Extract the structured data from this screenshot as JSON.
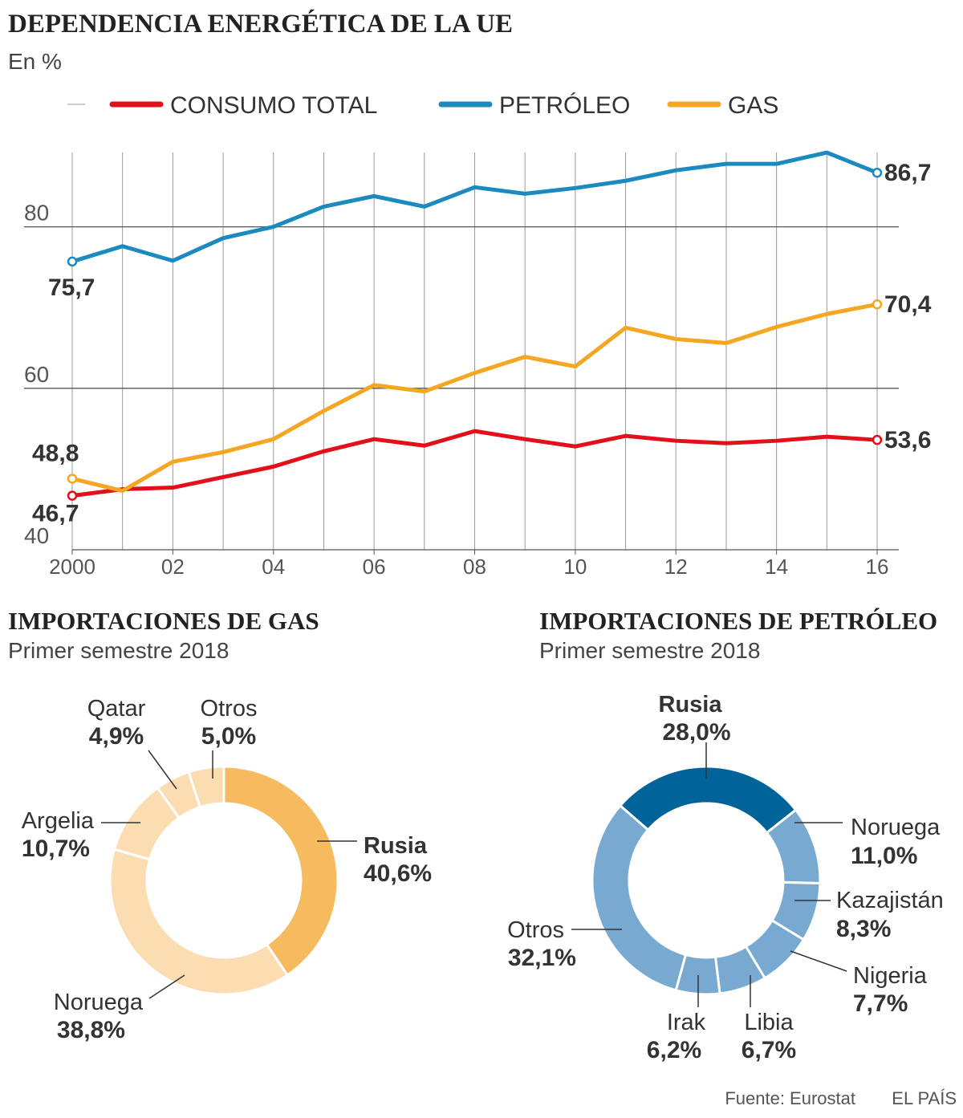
{
  "chart_data": [
    {
      "type": "line",
      "title": "DEPENDENCIA ENERGÉTICA DE LA UE",
      "subtitle": "En %",
      "x": [
        2000,
        2001,
        2002,
        2003,
        2004,
        2005,
        2006,
        2007,
        2008,
        2009,
        2010,
        2011,
        2012,
        2013,
        2014,
        2015,
        2016
      ],
      "xlim": [
        2000,
        2016
      ],
      "xticks": [
        2000,
        {
          "value": 2002,
          "label": "02"
        },
        {
          "value": 2004,
          "label": "04"
        },
        {
          "value": 2006,
          "label": "06"
        },
        {
          "value": 2008,
          "label": "08"
        },
        {
          "value": 2010,
          "label": "10"
        },
        {
          "value": 2012,
          "label": "12"
        },
        {
          "value": 2014,
          "label": "14"
        },
        {
          "value": 2016,
          "label": "16"
        }
      ],
      "ylim": [
        40,
        90
      ],
      "yticks": [
        40,
        60,
        80
      ],
      "grid": true,
      "series": [
        {
          "name": "CONSUMO TOTAL",
          "color": "#e3101b",
          "values": [
            46.7,
            47.5,
            47.7,
            49.0,
            50.3,
            52.2,
            53.7,
            52.9,
            54.7,
            53.7,
            52.8,
            54.1,
            53.5,
            53.2,
            53.5,
            54.0,
            53.6
          ],
          "value_labels": [
            "46,7",
            null,
            null,
            null,
            null,
            null,
            null,
            null,
            null,
            null,
            null,
            null,
            null,
            null,
            null,
            null,
            "53,6"
          ]
        },
        {
          "name": "PETRÓLEO",
          "color": "#1b8ac0",
          "values": [
            75.7,
            77.6,
            75.8,
            78.6,
            80.0,
            82.5,
            83.8,
            82.5,
            84.9,
            84.1,
            84.8,
            85.7,
            87.0,
            87.8,
            87.8,
            89.2,
            86.7
          ],
          "value_labels": [
            "75,7",
            null,
            null,
            null,
            null,
            null,
            null,
            null,
            null,
            null,
            null,
            null,
            null,
            null,
            null,
            null,
            "86,7"
          ]
        },
        {
          "name": "GAS",
          "color": "#f5a623",
          "values": [
            48.8,
            47.3,
            50.9,
            52.1,
            53.7,
            57.2,
            60.4,
            59.6,
            61.9,
            63.9,
            62.7,
            67.5,
            66.1,
            65.6,
            67.6,
            69.2,
            70.4
          ],
          "value_labels": [
            "48,8",
            null,
            null,
            null,
            null,
            null,
            null,
            null,
            null,
            null,
            null,
            null,
            null,
            null,
            null,
            null,
            "70,4"
          ]
        }
      ]
    },
    {
      "type": "donut",
      "title": "IMPORTACIONES DE GAS",
      "subtitle": "Primer semestre 2018",
      "categories": [
        "Rusia",
        "Noruega",
        "Argelia",
        "Qatar",
        "Otros"
      ],
      "values": [
        40.6,
        38.8,
        10.7,
        4.9,
        5.0
      ],
      "value_labels": [
        "40,6%",
        "38,8%",
        "10,7%",
        "4,9%",
        "5,0%"
      ],
      "colors": [
        "#f6bb5f",
        "#fcdcb1",
        "#fcdcb1",
        "#fcdcb1",
        "#fcdcb1"
      ]
    },
    {
      "type": "donut",
      "title": "IMPORTACIONES DE PETRÓLEO",
      "subtitle": "Primer semestre 2018",
      "categories": [
        "Rusia",
        "Noruega",
        "Kazajistán",
        "Nigeria",
        "Libia",
        "Irak",
        "Otros"
      ],
      "values": [
        28.0,
        11.0,
        8.3,
        7.7,
        6.7,
        6.2,
        32.1
      ],
      "value_labels": [
        "28,0%",
        "11,0%",
        "8,3%",
        "7,7%",
        "6,7%",
        "6,2%",
        "32,1%"
      ],
      "colors": [
        "#00649b",
        "#78aad1",
        "#78aad1",
        "#78aad1",
        "#78aad1",
        "#78aad1",
        "#78aad1"
      ]
    }
  ],
  "source": "Fuente: Eurostat",
  "credit": "EL PAÍS"
}
